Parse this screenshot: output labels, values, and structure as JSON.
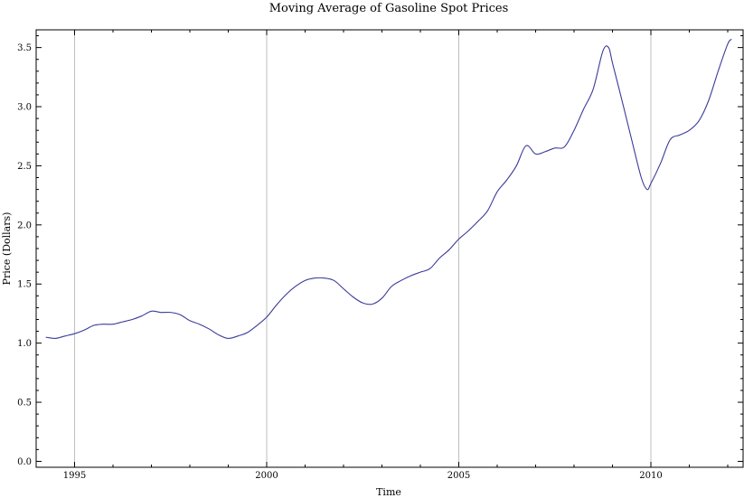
{
  "chart_data": {
    "type": "line",
    "title": "Moving Average of Gasoline Spot Prices",
    "xlabel": "Time",
    "ylabel": "Price (Dollars)",
    "xlim": [
      1994.0,
      2012.4
    ],
    "ylim": [
      -0.05,
      3.65
    ],
    "x_ticks": [
      1995,
      2000,
      2005,
      2010
    ],
    "x_tick_labels": [
      "1995",
      "2000",
      "2005",
      "2010"
    ],
    "y_ticks": [
      0.0,
      0.5,
      1.0,
      1.5,
      2.0,
      2.5,
      3.0,
      3.5
    ],
    "y_tick_labels": [
      "0.0",
      "0.5",
      "1.0",
      "1.5",
      "2.0",
      "2.5",
      "3.0",
      "3.5"
    ],
    "vertical_gridlines": true,
    "horizontal_gridlines": false,
    "line_color": "#3b3b9a",
    "gridline_color": "#bfbfbf",
    "series": [
      {
        "x": [
          1994.25,
          1994.5,
          1994.75,
          1995.0,
          1995.25,
          1995.5,
          1995.75,
          1996.0,
          1996.25,
          1996.5,
          1996.75,
          1997.0,
          1997.25,
          1997.5,
          1997.75,
          1998.0,
          1998.25,
          1998.5,
          1998.75,
          1999.0,
          1999.25,
          1999.5,
          1999.75,
          2000.0,
          2000.25,
          2000.5,
          2000.75,
          2001.0,
          2001.25,
          2001.5,
          2001.75,
          2002.0,
          2002.25,
          2002.5,
          2002.75,
          2003.0,
          2003.25,
          2003.5,
          2003.75,
          2004.0,
          2004.25,
          2004.5,
          2004.75,
          2005.0,
          2005.25,
          2005.5,
          2005.75,
          2006.0,
          2006.25,
          2006.5,
          2006.75,
          2007.0,
          2007.25,
          2007.5,
          2007.75,
          2008.0,
          2008.25,
          2008.5,
          2008.75,
          2008.9,
          2009.0,
          2009.25,
          2009.5,
          2009.75,
          2009.9,
          2010.0,
          2010.25,
          2010.5,
          2010.75,
          2011.0,
          2011.25,
          2011.5,
          2011.75,
          2012.0,
          2012.1
        ],
        "y": [
          1.05,
          1.04,
          1.06,
          1.08,
          1.11,
          1.15,
          1.16,
          1.16,
          1.18,
          1.2,
          1.23,
          1.27,
          1.26,
          1.26,
          1.24,
          1.19,
          1.16,
          1.12,
          1.07,
          1.04,
          1.06,
          1.09,
          1.15,
          1.22,
          1.32,
          1.41,
          1.48,
          1.53,
          1.55,
          1.55,
          1.53,
          1.46,
          1.39,
          1.34,
          1.33,
          1.38,
          1.48,
          1.53,
          1.57,
          1.6,
          1.63,
          1.72,
          1.79,
          1.88,
          1.95,
          2.03,
          2.12,
          2.28,
          2.38,
          2.5,
          2.67,
          2.6,
          2.62,
          2.65,
          2.66,
          2.8,
          2.98,
          3.15,
          3.47,
          3.5,
          3.37,
          3.05,
          2.72,
          2.4,
          2.3,
          2.35,
          2.52,
          2.72,
          2.76,
          2.8,
          2.88,
          3.05,
          3.3,
          3.53,
          3.57
        ]
      }
    ]
  }
}
